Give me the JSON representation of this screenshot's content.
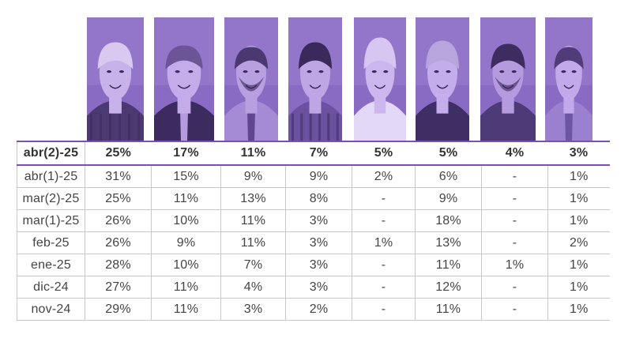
{
  "colors": {
    "photo_tint": "#8a6bc4",
    "photo_shadow": "#3a2a5c",
    "accent_rule": "#7a4fb8",
    "grid": "#c9c9c9"
  },
  "photos": [
    {
      "name": "candidate-1-photo"
    },
    {
      "name": "candidate-2-photo"
    },
    {
      "name": "candidate-3-photo"
    },
    {
      "name": "candidate-4-photo"
    },
    {
      "name": "candidate-5-photo"
    },
    {
      "name": "candidate-6-photo"
    },
    {
      "name": "candidate-7-photo"
    },
    {
      "name": "candidate-8-photo"
    }
  ],
  "table": {
    "header": {
      "label": "abr(2)-25",
      "values": [
        "25%",
        "17%",
        "11%",
        "7%",
        "5%",
        "5%",
        "4%",
        "3%"
      ]
    },
    "rows": [
      {
        "label": "abr(1)-25",
        "values": [
          "31%",
          "15%",
          "9%",
          "9%",
          "2%",
          "6%",
          "-",
          "1%"
        ]
      },
      {
        "label": "mar(2)-25",
        "values": [
          "25%",
          "11%",
          "13%",
          "8%",
          "-",
          "9%",
          "-",
          "1%"
        ]
      },
      {
        "label": "mar(1)-25",
        "values": [
          "26%",
          "10%",
          "11%",
          "3%",
          "-",
          "18%",
          "-",
          "1%"
        ]
      },
      {
        "label": "feb-25",
        "values": [
          "26%",
          "9%",
          "11%",
          "3%",
          "1%",
          "13%",
          "-",
          "2%"
        ]
      },
      {
        "label": "ene-25",
        "values": [
          "28%",
          "10%",
          "7%",
          "3%",
          "-",
          "11%",
          "1%",
          "1%"
        ]
      },
      {
        "label": "dic-24",
        "values": [
          "27%",
          "11%",
          "4%",
          "3%",
          "-",
          "12%",
          "-",
          "1%"
        ]
      },
      {
        "label": "nov-24",
        "values": [
          "29%",
          "11%",
          "3%",
          "2%",
          "-",
          "11%",
          "-",
          "1%"
        ]
      }
    ]
  }
}
